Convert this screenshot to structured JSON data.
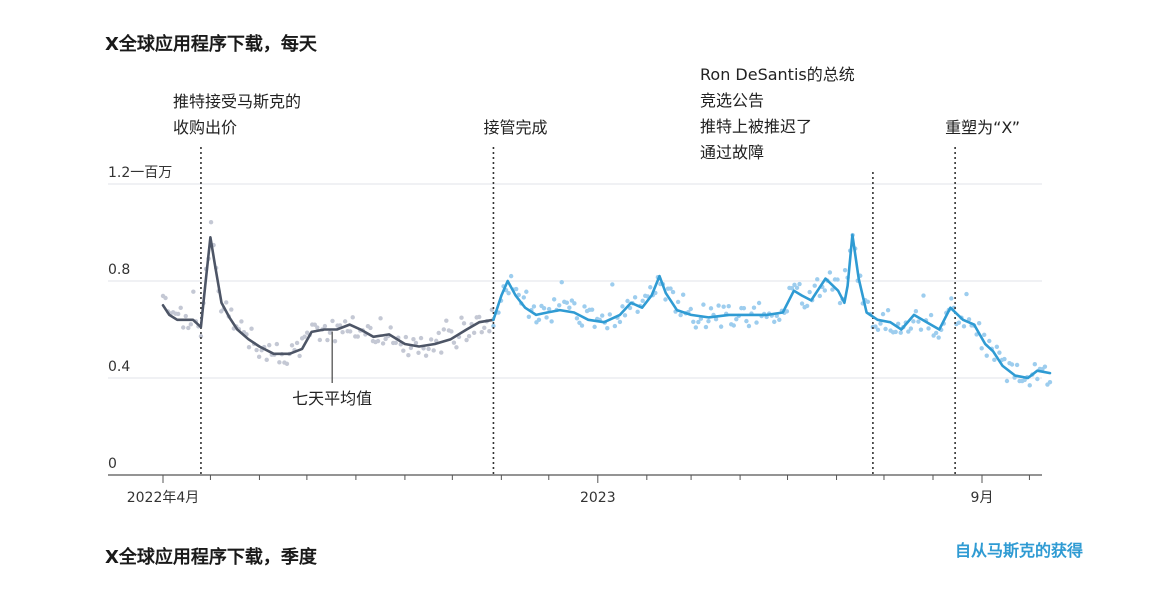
{
  "chart_data": {
    "type": "line",
    "title": "X全球应用程序下载，每天",
    "subtitle": "X全球应用程序下载，季度",
    "ylim": [
      0,
      1.2
    ],
    "yticks": [
      {
        "value": 0,
        "label": "0"
      },
      {
        "value": 0.4,
        "label": "0.4"
      },
      {
        "value": 0.8,
        "label": "0.8"
      },
      {
        "value": 1.2,
        "label": "1.2一百万"
      }
    ],
    "xticks": [
      {
        "date": "2022-04-01",
        "label": "2022年4月"
      },
      {
        "date": "2023-01-01",
        "label": "2023"
      },
      {
        "date": "2023-09-01",
        "label": "9月"
      }
    ],
    "xlim": [
      "2022-04-01",
      "2023-10-15"
    ],
    "grid": true,
    "series": [
      {
        "name": "七天平均值",
        "color": "#4d5566",
        "dots_color": "#c4c8d4",
        "points": [
          [
            "2022-04-01",
            0.7
          ],
          [
            "2022-04-05",
            0.66
          ],
          [
            "2022-04-10",
            0.64
          ],
          [
            "2022-04-15",
            0.64
          ],
          [
            "2022-04-20",
            0.64
          ],
          [
            "2022-04-25",
            0.61
          ],
          [
            "2022-04-28",
            0.8
          ],
          [
            "2022-05-01",
            0.98
          ],
          [
            "2022-05-04",
            0.86
          ],
          [
            "2022-05-08",
            0.71
          ],
          [
            "2022-05-13",
            0.65
          ],
          [
            "2022-05-18",
            0.6
          ],
          [
            "2022-05-25",
            0.56
          ],
          [
            "2022-06-01",
            0.53
          ],
          [
            "2022-06-10",
            0.5
          ],
          [
            "2022-06-20",
            0.5
          ],
          [
            "2022-06-28",
            0.52
          ],
          [
            "2022-07-04",
            0.59
          ],
          [
            "2022-07-12",
            0.6
          ],
          [
            "2022-07-20",
            0.6
          ],
          [
            "2022-07-28",
            0.62
          ],
          [
            "2022-08-04",
            0.6
          ],
          [
            "2022-08-12",
            0.57
          ],
          [
            "2022-08-22",
            0.58
          ],
          [
            "2022-09-01",
            0.54
          ],
          [
            "2022-09-10",
            0.53
          ],
          [
            "2022-09-20",
            0.54
          ],
          [
            "2022-09-30",
            0.56
          ],
          [
            "2022-10-10",
            0.6
          ],
          [
            "2022-10-18",
            0.63
          ],
          [
            "2022-10-27",
            0.64
          ]
        ]
      },
      {
        "name": "自从马斯克的获得",
        "color": "#2f9bd3",
        "dots_color": "#9dcdee",
        "points": [
          [
            "2022-10-27",
            0.64
          ],
          [
            "2022-11-01",
            0.74
          ],
          [
            "2022-11-05",
            0.8
          ],
          [
            "2022-11-10",
            0.74
          ],
          [
            "2022-11-16",
            0.69
          ],
          [
            "2022-11-23",
            0.66
          ],
          [
            "2022-11-30",
            0.67
          ],
          [
            "2022-12-08",
            0.68
          ],
          [
            "2022-12-17",
            0.67
          ],
          [
            "2022-12-26",
            0.64
          ],
          [
            "2023-01-05",
            0.63
          ],
          [
            "2023-01-15",
            0.66
          ],
          [
            "2023-01-22",
            0.71
          ],
          [
            "2023-01-29",
            0.69
          ],
          [
            "2023-02-04",
            0.74
          ],
          [
            "2023-02-09",
            0.82
          ],
          [
            "2023-02-13",
            0.75
          ],
          [
            "2023-02-20",
            0.68
          ],
          [
            "2023-03-01",
            0.66
          ],
          [
            "2023-03-12",
            0.65
          ],
          [
            "2023-03-25",
            0.66
          ],
          [
            "2023-04-06",
            0.66
          ],
          [
            "2023-04-18",
            0.66
          ],
          [
            "2023-04-28",
            0.67
          ],
          [
            "2023-05-05",
            0.76
          ],
          [
            "2023-05-10",
            0.74
          ],
          [
            "2023-05-16",
            0.72
          ],
          [
            "2023-05-25",
            0.81
          ],
          [
            "2023-06-02",
            0.76
          ],
          [
            "2023-06-06",
            0.71
          ],
          [
            "2023-06-08",
            0.78
          ],
          [
            "2023-06-11",
            0.99
          ],
          [
            "2023-06-15",
            0.81
          ],
          [
            "2023-06-20",
            0.67
          ],
          [
            "2023-06-27",
            0.64
          ],
          [
            "2023-07-05",
            0.63
          ],
          [
            "2023-07-12",
            0.6
          ],
          [
            "2023-07-20",
            0.66
          ],
          [
            "2023-07-28",
            0.63
          ],
          [
            "2023-08-05",
            0.6
          ],
          [
            "2023-08-12",
            0.69
          ],
          [
            "2023-08-20",
            0.64
          ],
          [
            "2023-08-27",
            0.62
          ],
          [
            "2023-09-03",
            0.54
          ],
          [
            "2023-09-08",
            0.51
          ],
          [
            "2023-09-14",
            0.45
          ],
          [
            "2023-09-22",
            0.41
          ],
          [
            "2023-09-30",
            0.4
          ],
          [
            "2023-10-06",
            0.43
          ],
          [
            "2023-10-14",
            0.42
          ]
        ]
      }
    ],
    "annotations": [
      {
        "date": "2022-04-25",
        "lines": [
          "推特接受马斯克的",
          "收购出价"
        ]
      },
      {
        "date": "2022-10-27",
        "lines": [
          "接管完成"
        ]
      },
      {
        "date": "2023-06-24",
        "lines": [
          "Ron DeSantis的总统",
          "竞选公告",
          "推特上被推迟了",
          "通过故障"
        ]
      },
      {
        "date": "2023-08-15",
        "lines": [
          "重塑为“X”"
        ]
      }
    ],
    "callout": {
      "label": "七天平均值",
      "date": "2022-07-17",
      "value": 0.6
    }
  }
}
